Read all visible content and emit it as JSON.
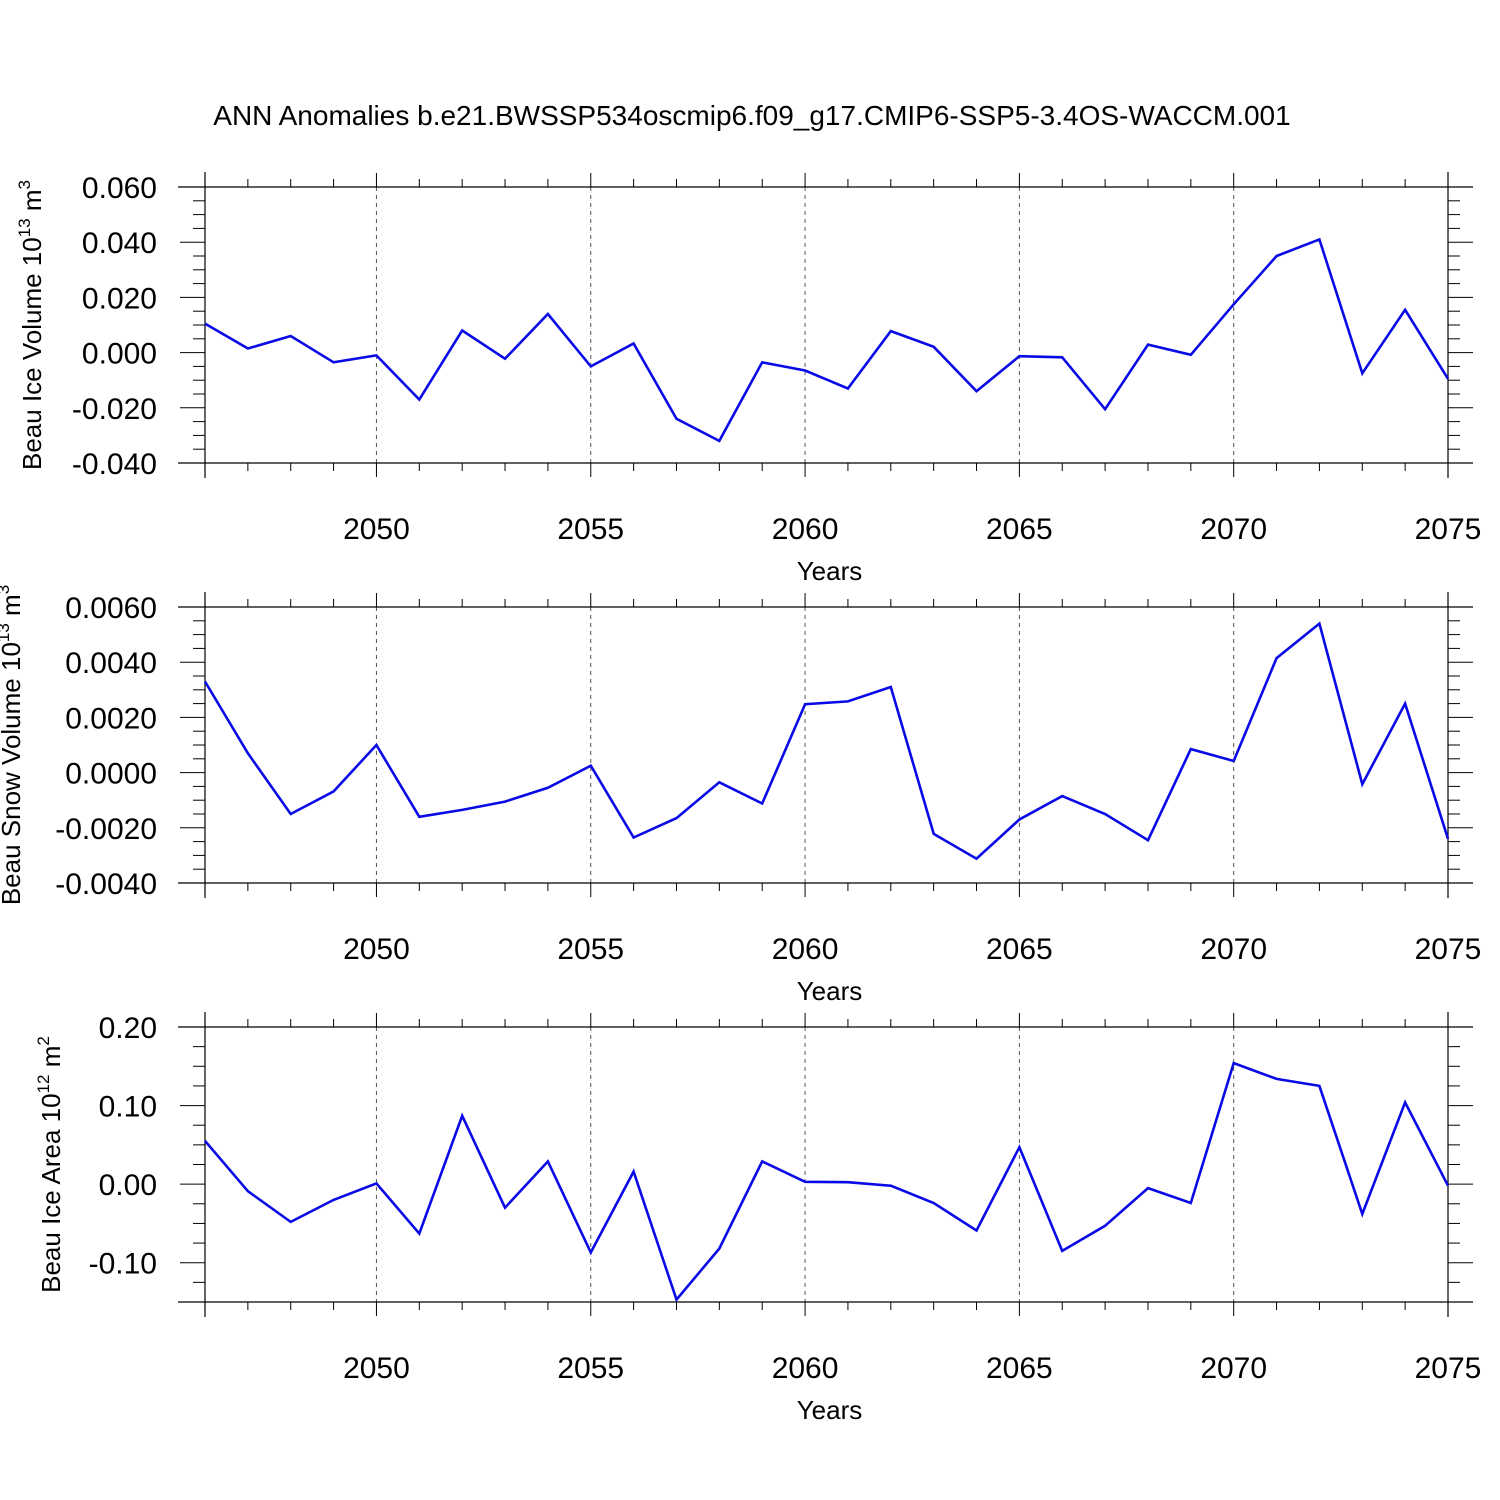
{
  "title": "ANN Anomalies b.e21.BWSSP534oscmip6.f09_g17.CMIP6-SSP5-3.4OS-WACCM.001",
  "line_color": "#0a0ae6",
  "chart_data": [
    {
      "type": "line",
      "xlabel": "Years",
      "ylabel": {
        "text": "Beau Ice Volume 10",
        "sup": "13",
        "unit": " m",
        "unit_sup": "3"
      },
      "xlim": [
        2046,
        2075
      ],
      "ylim": [
        -0.04,
        0.06
      ],
      "xticks": [
        2050,
        2055,
        2060,
        2065,
        2070,
        2075
      ],
      "yticks": [
        -0.04,
        -0.02,
        0.0,
        0.02,
        0.04,
        0.06
      ],
      "ytick_labels": [
        "-0.040",
        "-0.020",
        "0.000",
        "0.020",
        "0.040",
        "0.060"
      ],
      "grid": "vertical dashed at major x ticks",
      "x": [
        2046,
        2047,
        2048,
        2049,
        2050,
        2051,
        2052,
        2053,
        2054,
        2055,
        2056,
        2057,
        2058,
        2059,
        2060,
        2061,
        2062,
        2063,
        2064,
        2065,
        2066,
        2067,
        2068,
        2069,
        2070,
        2071,
        2072,
        2073,
        2074,
        2075
      ],
      "series": [
        {
          "values": [
            0.0105,
            0.0015,
            0.006,
            -0.0035,
            -0.001,
            -0.017,
            0.008,
            -0.0022,
            0.014,
            -0.005,
            0.0033,
            -0.024,
            -0.032,
            -0.0035,
            -0.0065,
            -0.013,
            0.0078,
            0.0021,
            -0.014,
            -0.0013,
            -0.0017,
            -0.0205,
            0.0029,
            -0.0008,
            0.0175,
            0.035,
            0.041,
            -0.0075,
            0.0155,
            -0.0095
          ]
        }
      ]
    },
    {
      "type": "line",
      "xlabel": "Years",
      "ylabel": {
        "text": "Beau Snow Volume 10",
        "sup": "13",
        "unit": " m",
        "unit_sup": "3"
      },
      "xlim": [
        2046,
        2075
      ],
      "ylim": [
        -0.004,
        0.006
      ],
      "xticks": [
        2050,
        2055,
        2060,
        2065,
        2070,
        2075
      ],
      "yticks": [
        -0.004,
        -0.002,
        0.0,
        0.002,
        0.004,
        0.006
      ],
      "ytick_labels": [
        "-0.0040",
        "-0.0020",
        "0.0000",
        "0.0020",
        "0.0040",
        "0.0060"
      ],
      "grid": "vertical dashed at major x ticks",
      "x": [
        2046,
        2047,
        2048,
        2049,
        2050,
        2051,
        2052,
        2053,
        2054,
        2055,
        2056,
        2057,
        2058,
        2059,
        2060,
        2061,
        2062,
        2063,
        2064,
        2065,
        2066,
        2067,
        2068,
        2069,
        2070,
        2071,
        2072,
        2073,
        2074,
        2075
      ],
      "series": [
        {
          "values": [
            0.0033,
            0.0007,
            -0.0015,
            -0.00068,
            0.001,
            -0.0016,
            -0.00135,
            -0.00105,
            -0.00055,
            0.00025,
            -0.00235,
            -0.00165,
            -0.00035,
            -0.00112,
            0.00248,
            0.00258,
            0.0031,
            -0.00222,
            -0.00312,
            -0.0017,
            -0.00085,
            -0.0015,
            -0.00245,
            0.00085,
            0.00042,
            0.00415,
            0.0054,
            -0.00042,
            0.0025,
            -0.0024
          ]
        }
      ]
    },
    {
      "type": "line",
      "xlabel": "Years",
      "ylabel": {
        "text": "Beau Ice Area 10",
        "sup": "12",
        "unit": " m",
        "unit_sup": "2"
      },
      "xlim": [
        2046,
        2075
      ],
      "ylim": [
        -0.15,
        0.2
      ],
      "xticks": [
        2050,
        2055,
        2060,
        2065,
        2070,
        2075
      ],
      "yticks": [
        -0.1,
        0.0,
        0.1,
        0.2
      ],
      "ytick_labels": [
        "-0.10",
        "0.00",
        "0.10",
        "0.20"
      ],
      "grid": "vertical dashed at major x ticks",
      "x": [
        2046,
        2047,
        2048,
        2049,
        2050,
        2051,
        2052,
        2053,
        2054,
        2055,
        2056,
        2057,
        2058,
        2059,
        2060,
        2061,
        2062,
        2063,
        2064,
        2065,
        2066,
        2067,
        2068,
        2069,
        2070,
        2071,
        2072,
        2073,
        2074,
        2075
      ],
      "series": [
        {
          "values": [
            0.055,
            -0.009,
            -0.048,
            -0.02,
            0.001,
            -0.063,
            0.087,
            -0.03,
            0.029,
            -0.087,
            0.016,
            -0.147,
            -0.082,
            0.029,
            0.003,
            0.0025,
            -0.002,
            -0.024,
            -0.059,
            0.047,
            -0.085,
            -0.053,
            -0.005,
            -0.024,
            0.154,
            0.134,
            0.125,
            -0.038,
            0.104,
            -0.002
          ]
        }
      ]
    }
  ]
}
